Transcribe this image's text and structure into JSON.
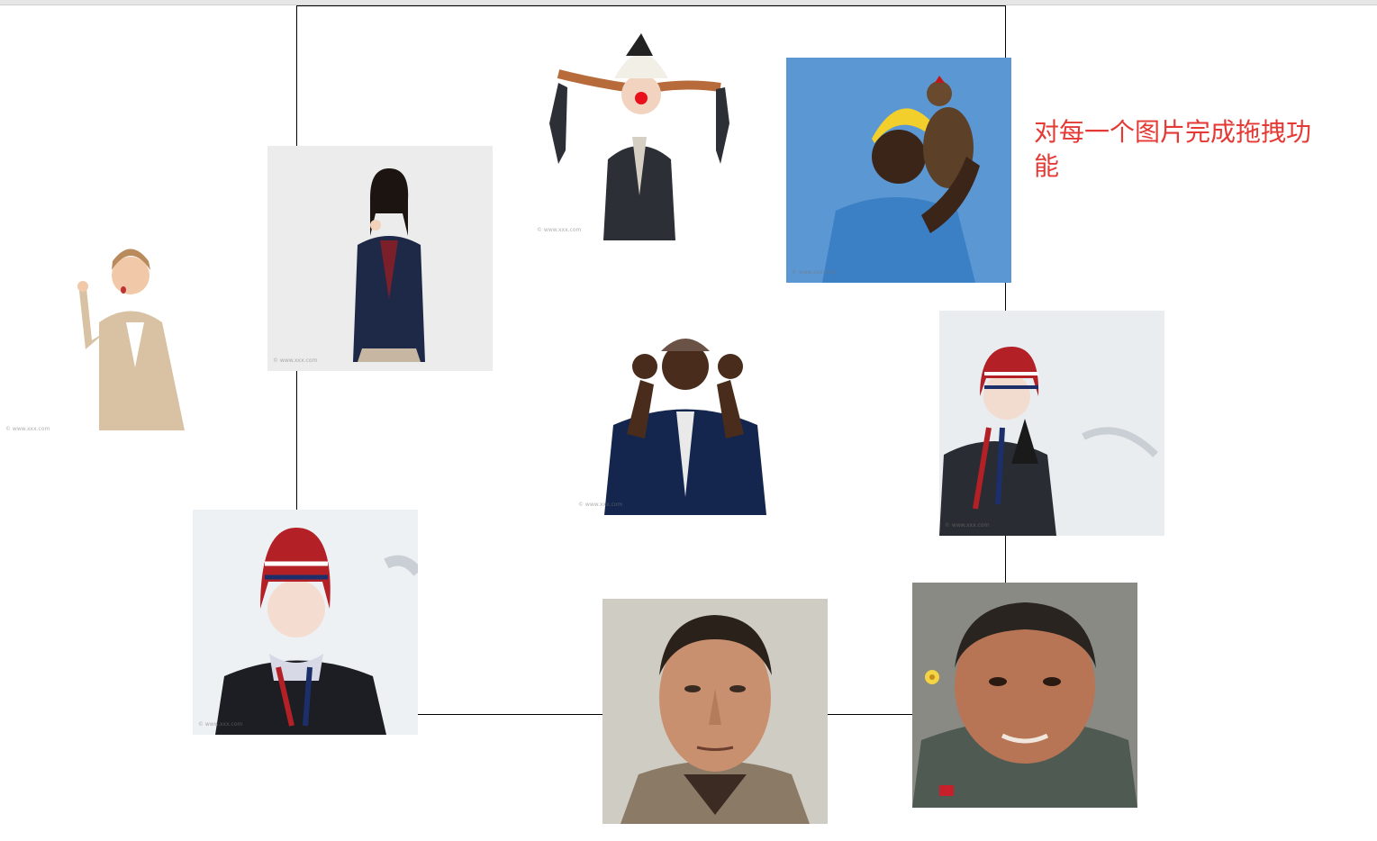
{
  "page": {
    "instruction": "对每一个图片完成拖拽功能"
  },
  "photos": [
    {
      "id": "woman-pointing",
      "alt": "pointing woman in beige suit"
    },
    {
      "id": "schoolgirl",
      "alt": "schoolgirl in uniform"
    },
    {
      "id": "clown-girl",
      "alt": "girl with clown nose and jester hat"
    },
    {
      "id": "woman-with-chicken",
      "alt": "woman holding a chicken"
    },
    {
      "id": "man-ok-gesture",
      "alt": "man making OK gesture"
    },
    {
      "id": "woman-winter-hat-right",
      "alt": "woman in knitted winter hat"
    },
    {
      "id": "woman-winter-hat-left",
      "alt": "woman in knitted winter hat"
    },
    {
      "id": "old-man-portrait",
      "alt": "old man portrait"
    },
    {
      "id": "child-portrait",
      "alt": "child with flower portrait"
    }
  ],
  "colors": {
    "instruction": "#e53935",
    "frame": "#000000"
  }
}
